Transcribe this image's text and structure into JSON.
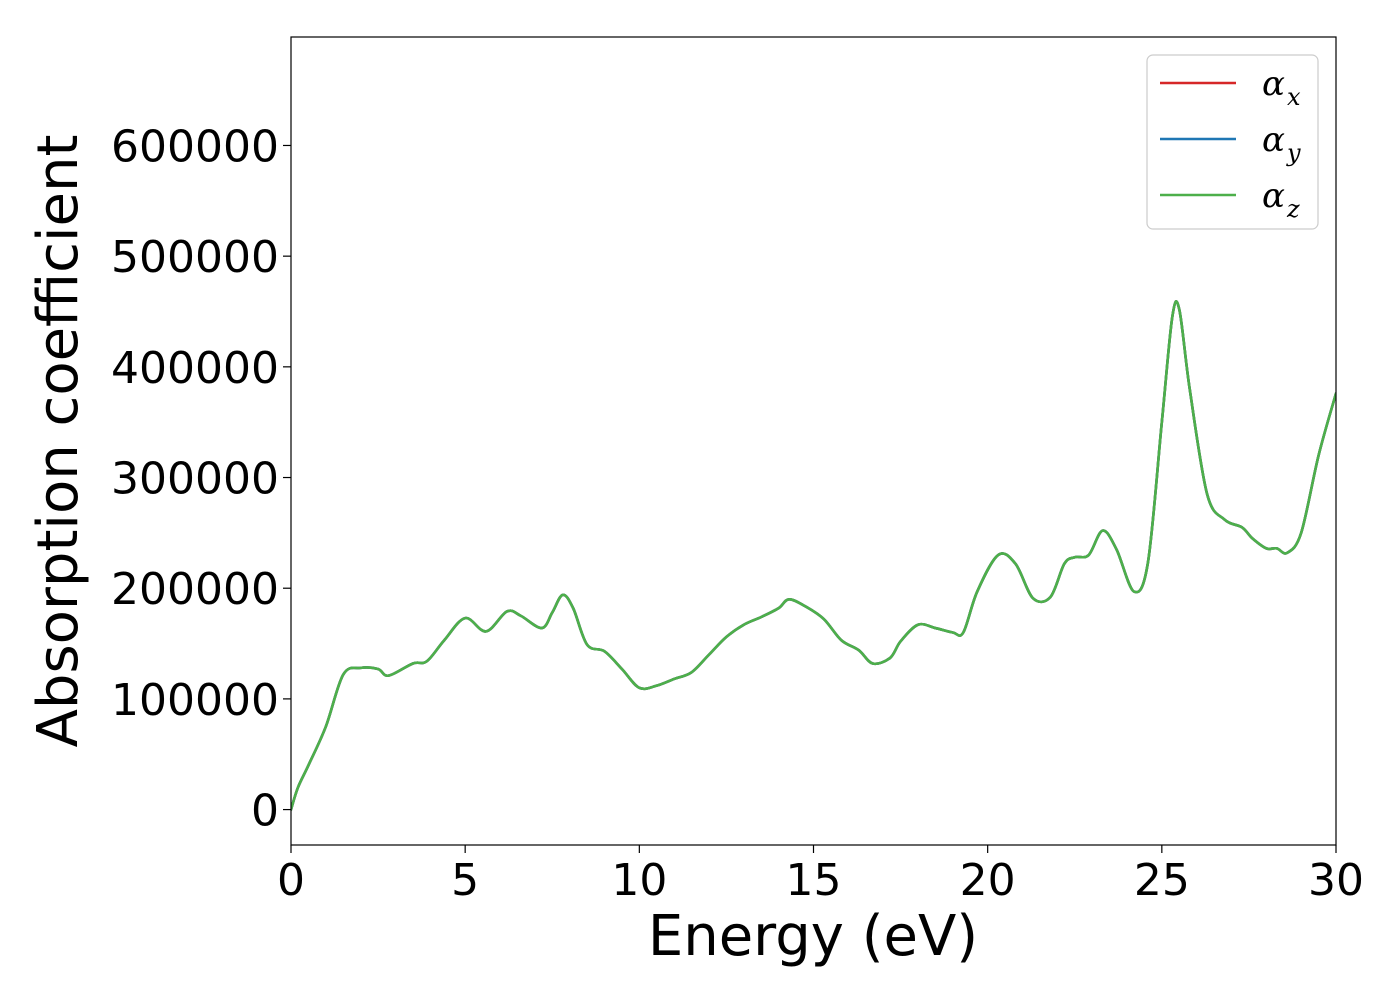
{
  "chart_data": {
    "type": "line",
    "title": "",
    "xlabel": "Energy (eV)",
    "ylabel": "Absorption coefficient",
    "xlim": [
      0,
      30
    ],
    "ylim": [
      -32000,
      698000
    ],
    "xticks": [
      0,
      5,
      10,
      15,
      20,
      25,
      30
    ],
    "xtick_labels": [
      "0",
      "5",
      "10",
      "15",
      "20",
      "25",
      "30"
    ],
    "yticks": [
      0,
      100000,
      200000,
      300000,
      400000,
      500000,
      600000
    ],
    "ytick_labels": [
      "0",
      "100000",
      "200000",
      "300000",
      "400000",
      "500000",
      "600000"
    ],
    "grid": false,
    "legend_position": "top-right",
    "colors": {
      "alpha_x": "#d62728",
      "alpha_y": "#1f77b4",
      "alpha_z": "#4daf4a"
    },
    "legend": [
      {
        "base": "α",
        "sub": "x",
        "color": "#d62728"
      },
      {
        "base": "α",
        "sub": "y",
        "color": "#1f77b4"
      },
      {
        "base": "α",
        "sub": "z",
        "color": "#4daf4a"
      }
    ],
    "x": [
      0,
      0.2,
      0.5,
      1.0,
      1.5,
      2.0,
      2.5,
      2.8,
      3.5,
      3.9,
      4.4,
      5.0,
      5.6,
      6.2,
      6.6,
      7.2,
      7.5,
      7.8,
      8.1,
      8.5,
      9.0,
      9.5,
      10.0,
      10.5,
      11.0,
      11.5,
      12.0,
      12.5,
      13.0,
      13.5,
      14.0,
      14.3,
      14.8,
      15.3,
      15.8,
      16.3,
      16.7,
      17.2,
      17.5,
      18.0,
      18.5,
      19.0,
      19.3,
      19.7,
      20.3,
      20.8,
      21.3,
      21.8,
      22.2,
      22.5,
      22.9,
      23.3,
      23.7,
      24.2,
      24.6,
      25.0,
      25.3,
      25.5,
      25.8,
      26.3,
      26.8,
      27.3,
      27.6,
      28.0,
      28.3,
      28.6,
      29.0,
      29.5,
      30.0
    ],
    "series": [
      {
        "name": "α_x",
        "color": "#d62728",
        "values": [
          0,
          20000,
          40000,
          75000,
          122000,
          128000,
          127000,
          121000,
          132000,
          134000,
          153000,
          173000,
          161000,
          179000,
          175000,
          164000,
          178000,
          194000,
          182000,
          149000,
          143000,
          127000,
          110000,
          112000,
          118000,
          124000,
          140000,
          156000,
          167000,
          174000,
          182000,
          190000,
          183000,
          172000,
          153000,
          144000,
          132000,
          137000,
          152000,
          167000,
          164000,
          160000,
          160000,
          197000,
          230000,
          222000,
          191000,
          192000,
          222000,
          228000,
          230000,
          252000,
          235000,
          197000,
          223000,
          350000,
          445000,
          452000,
          380000,
          285000,
          262000,
          255000,
          245000,
          236000,
          236000,
          232000,
          250000,
          320000,
          376000
        ]
      },
      {
        "name": "α_y",
        "color": "#1f77b4",
        "values": [
          0,
          20000,
          40000,
          75000,
          122000,
          128000,
          127000,
          121000,
          132000,
          134000,
          153000,
          173000,
          161000,
          179000,
          175000,
          164000,
          178000,
          194000,
          182000,
          149000,
          143000,
          127000,
          110000,
          112000,
          118000,
          124000,
          140000,
          156000,
          167000,
          174000,
          182000,
          190000,
          183000,
          172000,
          153000,
          144000,
          132000,
          137000,
          152000,
          167000,
          164000,
          160000,
          160000,
          197000,
          230000,
          222000,
          191000,
          192000,
          222000,
          228000,
          230000,
          252000,
          235000,
          197000,
          223000,
          350000,
          445000,
          452000,
          380000,
          285000,
          262000,
          255000,
          245000,
          236000,
          236000,
          232000,
          250000,
          320000,
          376000
        ]
      },
      {
        "name": "α_z",
        "color": "#4daf4a",
        "values": [
          0,
          20000,
          40000,
          75000,
          122000,
          128000,
          127000,
          121000,
          132000,
          134000,
          153000,
          173000,
          161000,
          179000,
          175000,
          164000,
          178000,
          194000,
          182000,
          149000,
          143000,
          127000,
          110000,
          112000,
          118000,
          124000,
          140000,
          156000,
          167000,
          174000,
          182000,
          190000,
          183000,
          172000,
          153000,
          144000,
          132000,
          137000,
          152000,
          167000,
          164000,
          160000,
          160000,
          197000,
          230000,
          222000,
          191000,
          192000,
          222000,
          228000,
          230000,
          252000,
          235000,
          197000,
          223000,
          350000,
          445000,
          452000,
          380000,
          285000,
          262000,
          255000,
          245000,
          236000,
          236000,
          232000,
          250000,
          320000,
          376000
        ]
      }
    ]
  }
}
